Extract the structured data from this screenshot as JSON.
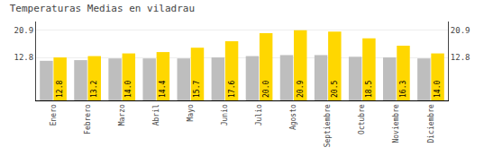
{
  "chart_data": {
    "type": "bar",
    "title": "Temperaturas Medias en viladrau",
    "categories": [
      "Enero",
      "Febrero",
      "Marzo",
      "Abril",
      "Mayo",
      "Junio",
      "Julio",
      "Agosto",
      "Septiembre",
      "Octubre",
      "Noviembre",
      "Diciembre"
    ],
    "series": [
      {
        "color": "#BEBEBE",
        "values": [
          11.8,
          12.0,
          12.5,
          12.5,
          12.5,
          12.8,
          13.2,
          13.5,
          13.5,
          13.0,
          12.8,
          12.5
        ]
      },
      {
        "color": "#FFD700",
        "values": [
          12.8,
          13.2,
          14.0,
          14.4,
          15.7,
          17.6,
          20.0,
          20.9,
          20.5,
          18.5,
          16.3,
          14.0
        ],
        "value_labels": [
          "12.8",
          "13.2",
          "14.0",
          "14.4",
          "15.7",
          "17.6",
          "20.0",
          "20.9",
          "20.5",
          "18.5",
          "16.3",
          "14.0"
        ],
        "data_labels": true
      }
    ],
    "ylim": [
      0,
      23.5
    ],
    "yticks": [
      12.8,
      20.9
    ],
    "y2lim": [
      0,
      23.5
    ],
    "y2ticks": [
      12.8,
      20.9
    ],
    "grid": true
  }
}
